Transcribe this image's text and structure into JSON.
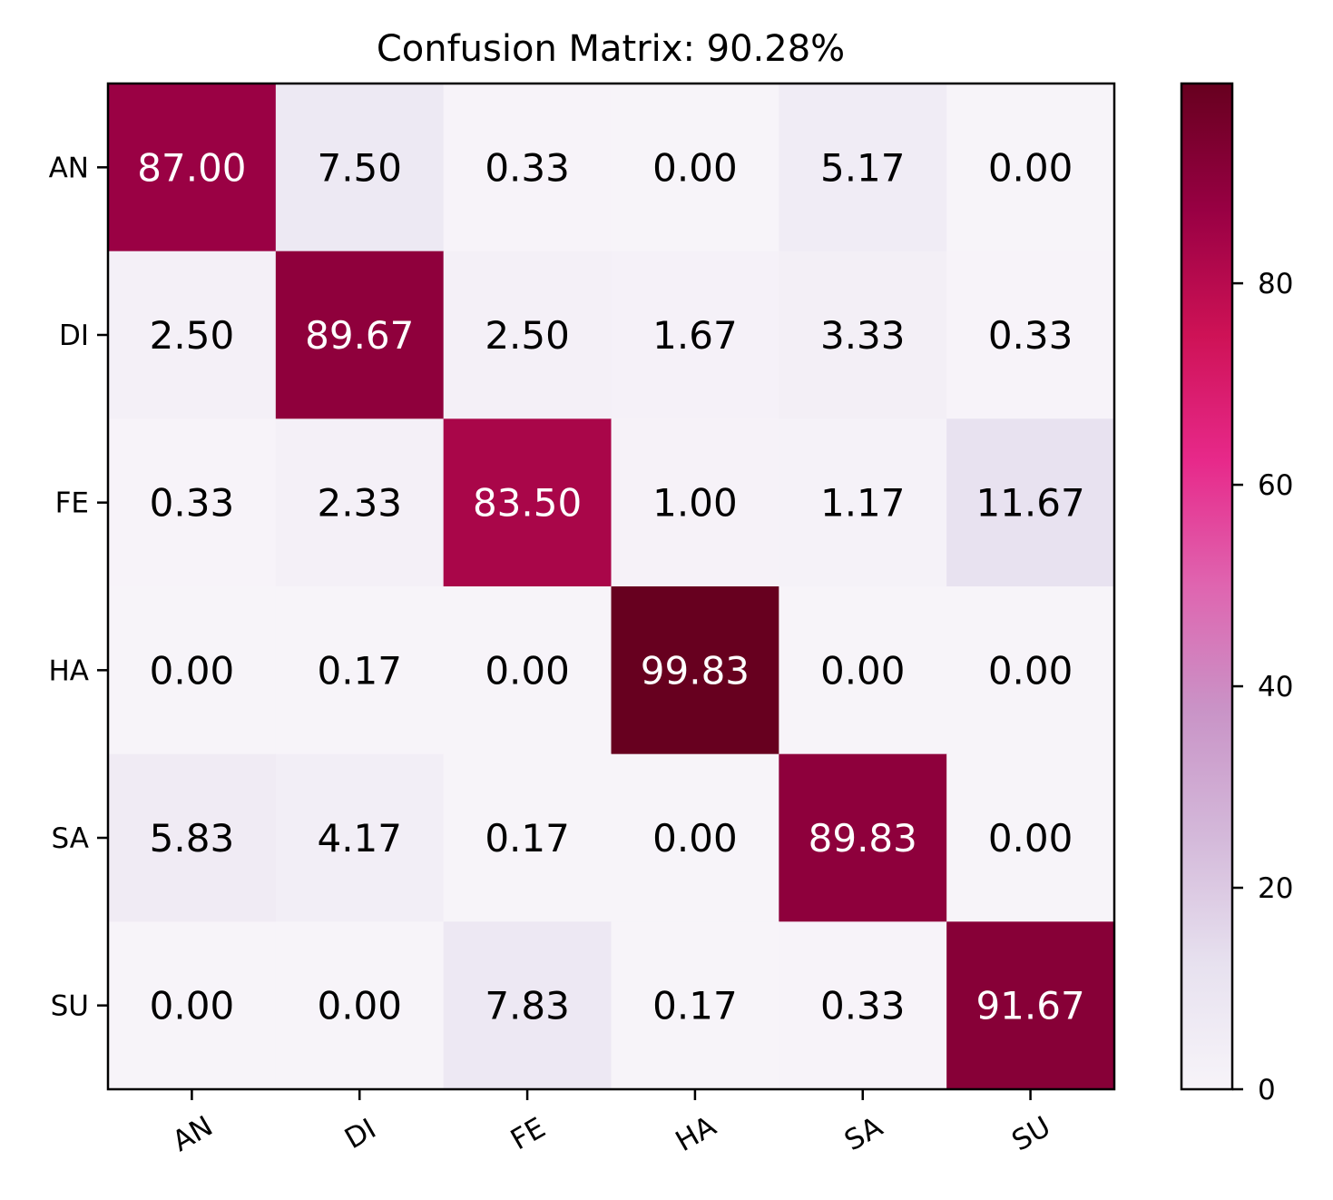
{
  "chart_data": {
    "type": "heatmap",
    "title": "Confusion Matrix: 90.28%",
    "row_labels": [
      "AN",
      "DI",
      "FE",
      "HA",
      "SA",
      "SU"
    ],
    "col_labels": [
      "AN",
      "DI",
      "FE",
      "HA",
      "SA",
      "SU"
    ],
    "cell_text": [
      [
        "87.00",
        "7.50",
        "0.33",
        "0.00",
        "5.17",
        "0.00"
      ],
      [
        "2.50",
        "89.67",
        "2.50",
        "1.67",
        "3.33",
        "0.33"
      ],
      [
        "0.33",
        "2.33",
        "83.50",
        "1.00",
        "1.17",
        "11.67"
      ],
      [
        "0.00",
        "0.17",
        "0.00",
        "99.83",
        "0.00",
        "0.00"
      ],
      [
        "5.83",
        "4.17",
        "0.17",
        "0.00",
        "89.83",
        "0.00"
      ],
      [
        "0.00",
        "0.00",
        "7.83",
        "0.17",
        "0.33",
        "91.67"
      ]
    ],
    "values": [
      [
        87.0,
        7.5,
        0.33,
        0.0,
        5.17,
        0.0
      ],
      [
        2.5,
        89.67,
        2.5,
        1.67,
        3.33,
        0.33
      ],
      [
        0.33,
        2.33,
        83.5,
        1.0,
        1.17,
        11.67
      ],
      [
        0.0,
        0.17,
        0.0,
        99.83,
        0.0,
        0.0
      ],
      [
        5.83,
        4.17,
        0.17,
        0.0,
        89.83,
        0.0
      ],
      [
        0.0,
        0.0,
        7.83,
        0.17,
        0.33,
        91.67
      ]
    ],
    "colorbar": {
      "min": 0,
      "max": 99.83,
      "ticks": [
        0,
        20,
        40,
        60,
        80
      ],
      "tick_labels": [
        "0",
        "20",
        "40",
        "60",
        "80"
      ]
    },
    "colormap_stops": [
      "#f7f4f9",
      "#e7e1ef",
      "#d4b9da",
      "#c994c7",
      "#df65b0",
      "#e7298a",
      "#ce1256",
      "#980043",
      "#67001f"
    ],
    "text_colors": {
      "dark_cell": "#ffffff",
      "light_cell": "#000000"
    }
  }
}
